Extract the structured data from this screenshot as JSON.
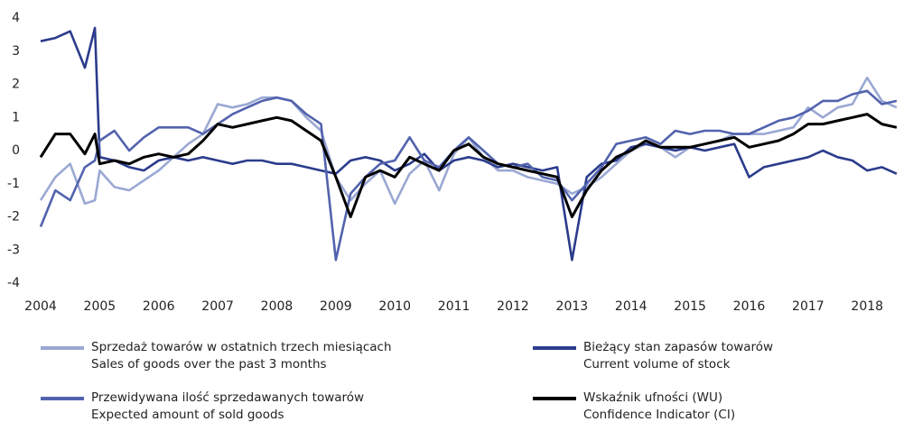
{
  "chart_data": {
    "type": "line",
    "x": [
      2004,
      2004.25,
      2004.5,
      2004.75,
      2004.92,
      2005,
      2005.25,
      2005.5,
      2005.75,
      2006,
      2006.25,
      2006.5,
      2006.75,
      2007,
      2007.25,
      2007.5,
      2007.75,
      2008,
      2008.25,
      2008.5,
      2008.75,
      2009,
      2009.25,
      2009.5,
      2009.75,
      2010,
      2010.25,
      2010.5,
      2010.75,
      2011,
      2011.25,
      2011.5,
      2011.75,
      2012,
      2012.25,
      2012.5,
      2012.75,
      2013,
      2013.25,
      2013.5,
      2013.75,
      2014,
      2014.25,
      2014.5,
      2014.75,
      2015,
      2015.25,
      2015.5,
      2015.75,
      2016,
      2016.25,
      2016.5,
      2016.75,
      2017,
      2017.25,
      2017.5,
      2017.75,
      2018,
      2018.25,
      2018.5
    ],
    "series": [
      {
        "name": "Sprzedaż towarów w ostatnich trzech miesiącach\nSales of goods over the past 3 months",
        "color": "#9aa8d3",
        "values": [
          -1.5,
          -0.8,
          -0.4,
          -1.6,
          -1.5,
          -0.6,
          -1.1,
          -1.2,
          -0.9,
          -0.6,
          -0.2,
          0.2,
          0.5,
          1.4,
          1.3,
          1.4,
          1.6,
          1.6,
          1.5,
          1.0,
          0.6,
          -0.8,
          -1.5,
          -1.0,
          -0.6,
          -1.6,
          -0.7,
          -0.3,
          -1.2,
          -0.1,
          0.4,
          -0.2,
          -0.6,
          -0.6,
          -0.8,
          -0.9,
          -1.0,
          -1.3,
          -1.1,
          -0.8,
          -0.4,
          0.0,
          0.2,
          0.1,
          -0.2,
          0.1,
          0.2,
          0.3,
          0.5,
          0.5,
          0.5,
          0.6,
          0.7,
          1.3,
          1.0,
          1.3,
          1.4,
          2.2,
          1.5,
          1.3
        ]
      },
      {
        "name": "Bieżący stan zapasów towarów\nCurrent volume of stock",
        "color": "#2b3c8c",
        "values": [
          3.3,
          3.4,
          3.6,
          2.5,
          3.7,
          -0.2,
          -0.3,
          -0.5,
          -0.6,
          -0.3,
          -0.2,
          -0.3,
          -0.2,
          -0.3,
          -0.4,
          -0.3,
          -0.3,
          -0.4,
          -0.4,
          -0.5,
          -0.6,
          -0.7,
          -0.3,
          -0.2,
          -0.3,
          -0.6,
          -0.4,
          -0.1,
          -0.6,
          -0.3,
          -0.2,
          -0.3,
          -0.5,
          -0.4,
          -0.5,
          -0.6,
          -0.5,
          -3.3,
          -0.8,
          -0.4,
          -0.3,
          0.1,
          0.2,
          0.1,
          0.0,
          0.1,
          0.0,
          0.1,
          0.2,
          -0.8,
          -0.5,
          -0.4,
          -0.3,
          -0.2,
          0.0,
          -0.2,
          -0.3,
          -0.6,
          -0.5,
          -0.7
        ]
      },
      {
        "name": "Przewidywana ilość sprzedawanych towarów\nExpected amount of sold goods",
        "color": "#5263ad",
        "values": [
          -2.3,
          -1.2,
          -1.5,
          -0.5,
          -0.3,
          0.3,
          0.6,
          0.0,
          0.4,
          0.7,
          0.7,
          0.7,
          0.5,
          0.8,
          1.1,
          1.3,
          1.5,
          1.6,
          1.5,
          1.1,
          0.8,
          -3.3,
          -1.3,
          -0.8,
          -0.4,
          -0.3,
          0.4,
          -0.3,
          -0.5,
          0.0,
          0.4,
          0.0,
          -0.4,
          -0.5,
          -0.4,
          -0.8,
          -0.9,
          -1.5,
          -1.0,
          -0.5,
          0.2,
          0.3,
          0.4,
          0.2,
          0.6,
          0.5,
          0.6,
          0.6,
          0.5,
          0.5,
          0.7,
          0.9,
          1.0,
          1.2,
          1.5,
          1.5,
          1.7,
          1.8,
          1.4,
          1.5
        ]
      },
      {
        "name": "Wskaźnik ufności (WU)\nConfidence Indicator (CI)",
        "color": "#000000",
        "values": [
          -0.2,
          0.5,
          0.5,
          -0.1,
          0.5,
          -0.4,
          -0.3,
          -0.4,
          -0.2,
          -0.1,
          -0.2,
          -0.1,
          0.3,
          0.8,
          0.7,
          0.8,
          0.9,
          1.0,
          0.9,
          0.6,
          0.3,
          -0.8,
          -2.0,
          -0.8,
          -0.6,
          -0.8,
          -0.2,
          -0.4,
          -0.6,
          0.0,
          0.2,
          -0.2,
          -0.4,
          -0.5,
          -0.6,
          -0.7,
          -0.8,
          -2.0,
          -1.2,
          -0.6,
          -0.2,
          0.0,
          0.3,
          0.1,
          0.1,
          0.1,
          0.2,
          0.3,
          0.4,
          0.1,
          0.2,
          0.3,
          0.5,
          0.8,
          0.8,
          0.9,
          1.0,
          1.1,
          0.8,
          0.7
        ]
      }
    ],
    "xlim": [
      2004,
      2018.7
    ],
    "xticks": [
      2004,
      2005,
      2006,
      2007,
      2008,
      2009,
      2010,
      2011,
      2012,
      2013,
      2014,
      2015,
      2016,
      2017,
      2018
    ],
    "ylim": [
      -4,
      4
    ],
    "yticks": [
      -4,
      -3,
      -2,
      -1,
      0,
      1,
      2,
      3,
      4
    ],
    "grid": false
  }
}
